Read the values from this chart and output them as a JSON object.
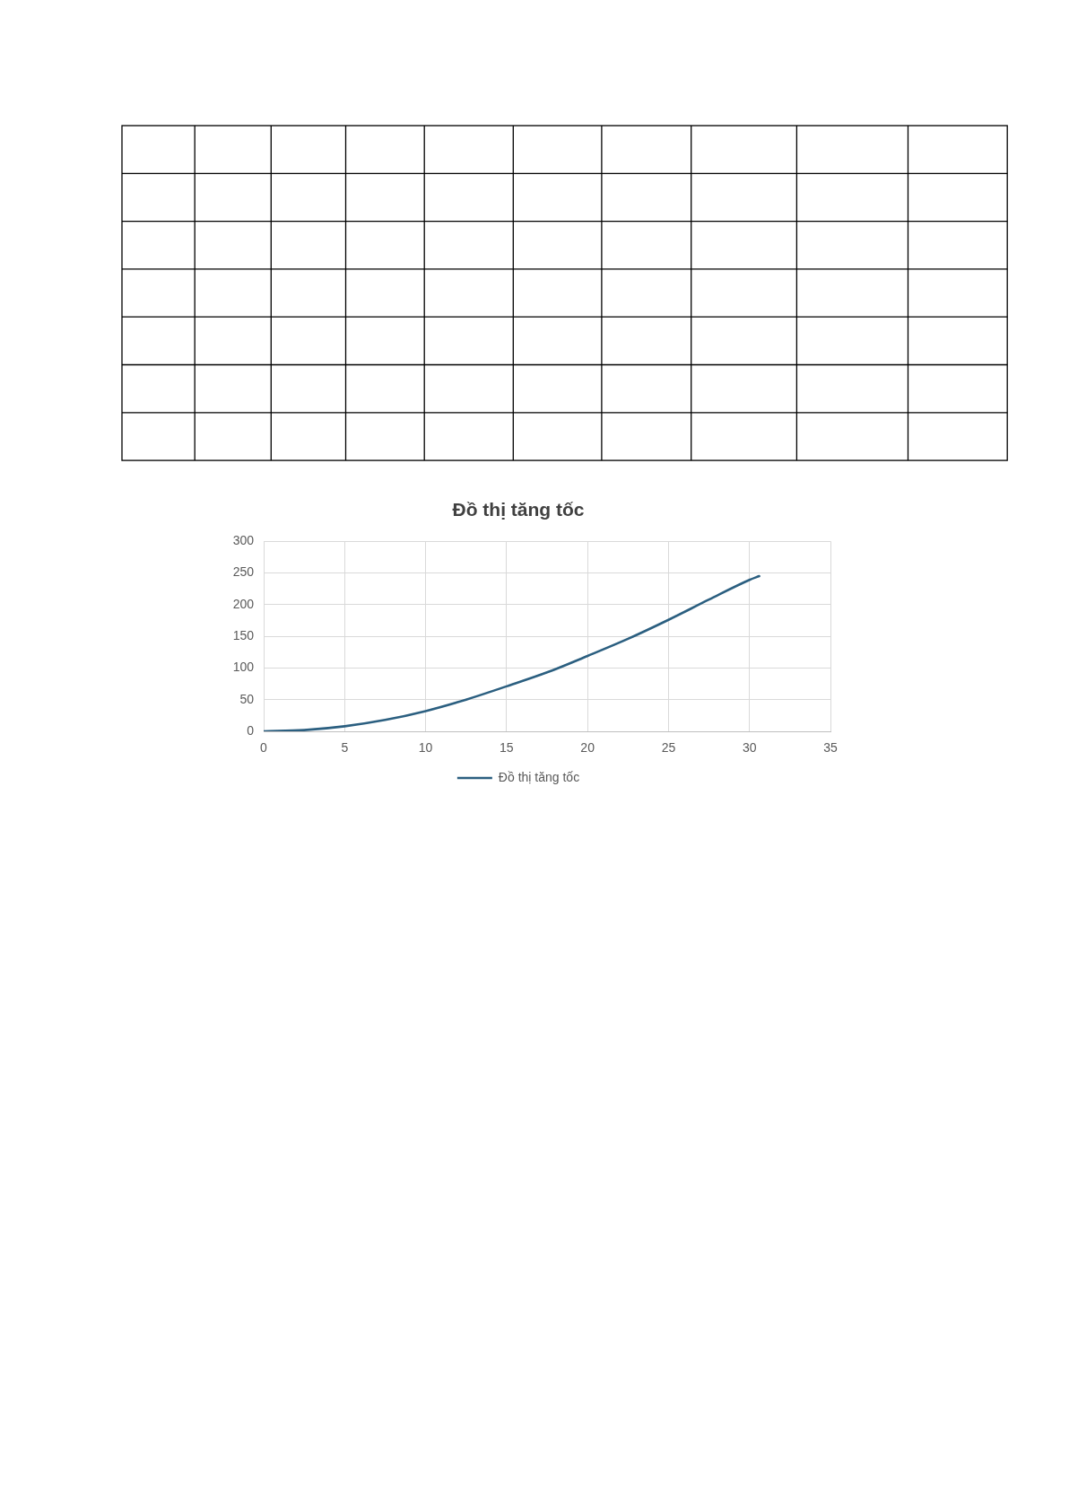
{
  "chart_data": {
    "type": "line",
    "title": "Đồ thị tăng tốc",
    "x": [
      0,
      2.5,
      5,
      7.5,
      10,
      12.5,
      15,
      17.5,
      20,
      22.5,
      25,
      27.5,
      30,
      30.6
    ],
    "series": [
      {
        "name": "Đồ thị tăng tốc",
        "color": "#2b5f80",
        "values": [
          0,
          2,
          8,
          18,
          32,
          50,
          71,
          93,
          119,
          146,
          176,
          208,
          239,
          245
        ]
      }
    ],
    "xlim": [
      0,
      35
    ],
    "xticks": [
      0,
      5,
      10,
      15,
      20,
      25,
      30,
      35
    ],
    "ylim": [
      0,
      300
    ],
    "yticks": [
      0,
      50,
      100,
      150,
      200,
      250,
      300
    ],
    "grid": true,
    "legend": "bottom",
    "marker": "none",
    "line_style": "solid"
  }
}
